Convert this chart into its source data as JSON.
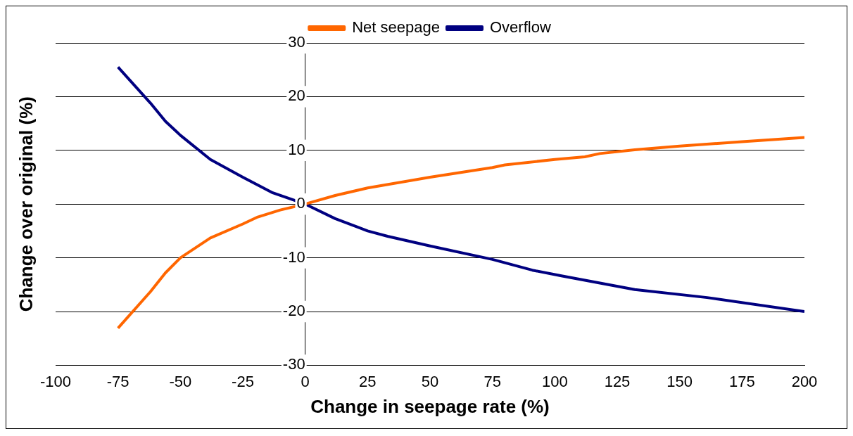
{
  "chart_data": {
    "type": "line",
    "xlabel": "Change in seepage rate (%)",
    "ylabel": "Change over original (%)",
    "xlim": [
      -100,
      200
    ],
    "xticks": [
      -100,
      -75,
      -50,
      -25,
      0,
      25,
      50,
      75,
      100,
      125,
      150,
      175,
      200
    ],
    "ylim": [
      -30,
      30
    ],
    "yticks": [
      -30,
      -20,
      -10,
      0,
      10,
      20,
      30
    ],
    "grid": "y",
    "legend": "top",
    "marker": "none",
    "line_style": "solid",
    "series": [
      {
        "name": "Net seepage",
        "color": "#ff6600",
        "x": [
          -75,
          -62,
          -56,
          -50,
          -38,
          -25,
          -19,
          -10,
          0,
          12,
          25,
          50,
          75,
          80,
          100,
          112,
          118,
          132,
          150,
          175,
          200
        ],
        "values": [
          -23.1,
          -16.3,
          -12.8,
          -10,
          -6.3,
          -3.7,
          -2.4,
          -1.1,
          0,
          1.6,
          3,
          5,
          6.8,
          7.3,
          8.3,
          8.8,
          9.4,
          10.1,
          10.8,
          11.6,
          12.4
        ]
      },
      {
        "name": "Overflow",
        "color": "#000080",
        "x": [
          -75,
          -62,
          -56,
          -50,
          -38,
          -25,
          -13,
          0,
          12,
          25,
          33,
          50,
          75,
          91,
          103,
          132,
          161,
          200
        ],
        "values": [
          25.5,
          18.8,
          15.4,
          12.8,
          8.3,
          5,
          2.1,
          0,
          -2.7,
          -5,
          -6,
          -7.8,
          -10.3,
          -12.3,
          -13.4,
          -15.9,
          -17.4,
          -20
        ]
      }
    ]
  }
}
